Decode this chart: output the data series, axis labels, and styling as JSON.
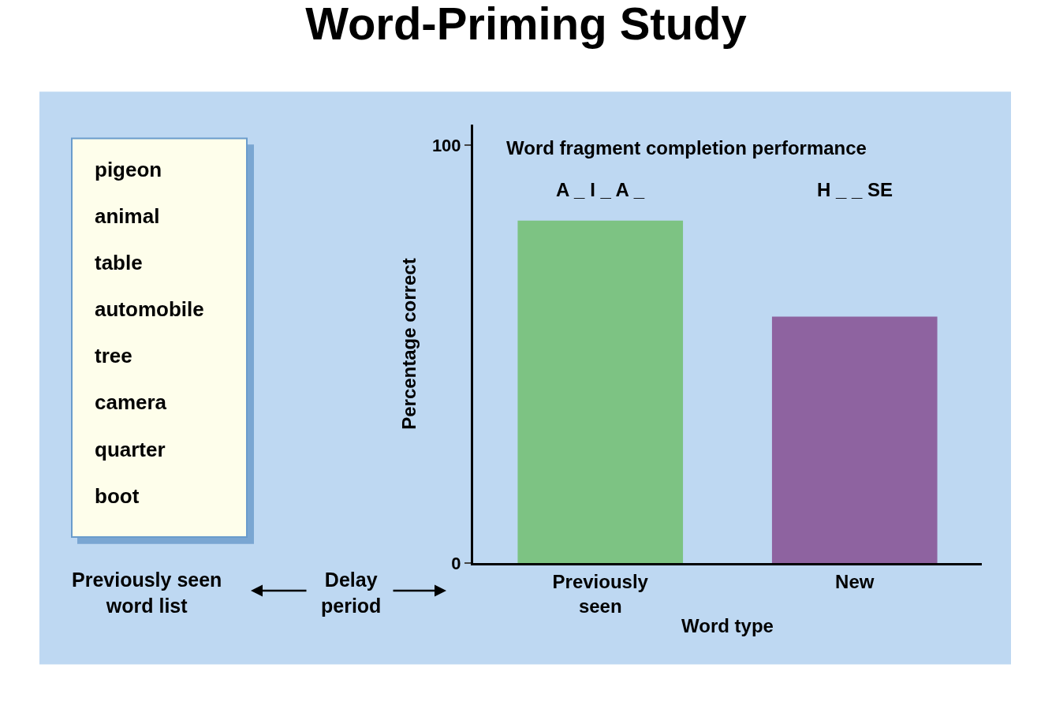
{
  "chart_data": {
    "type": "bar",
    "title": "Word-Priming Study",
    "subtitle": "Word fragment completion performance",
    "xlabel": "Word type",
    "ylabel": "Percentage correct",
    "categories": [
      "Previously seen",
      "New"
    ],
    "values": [
      82,
      59
    ],
    "colors": [
      "#7dc383",
      "#8e63a0"
    ],
    "ylim": [
      0,
      105
    ],
    "yticks": [
      0,
      100
    ],
    "grid": false,
    "annotations": [
      "A _ I _ A _",
      "H _ _ SE",
      "pigeon",
      "animal",
      "table",
      "automobile",
      "tree",
      "camera",
      "quarter",
      "boot",
      "Previously seen word list",
      "Delay period"
    ]
  }
}
